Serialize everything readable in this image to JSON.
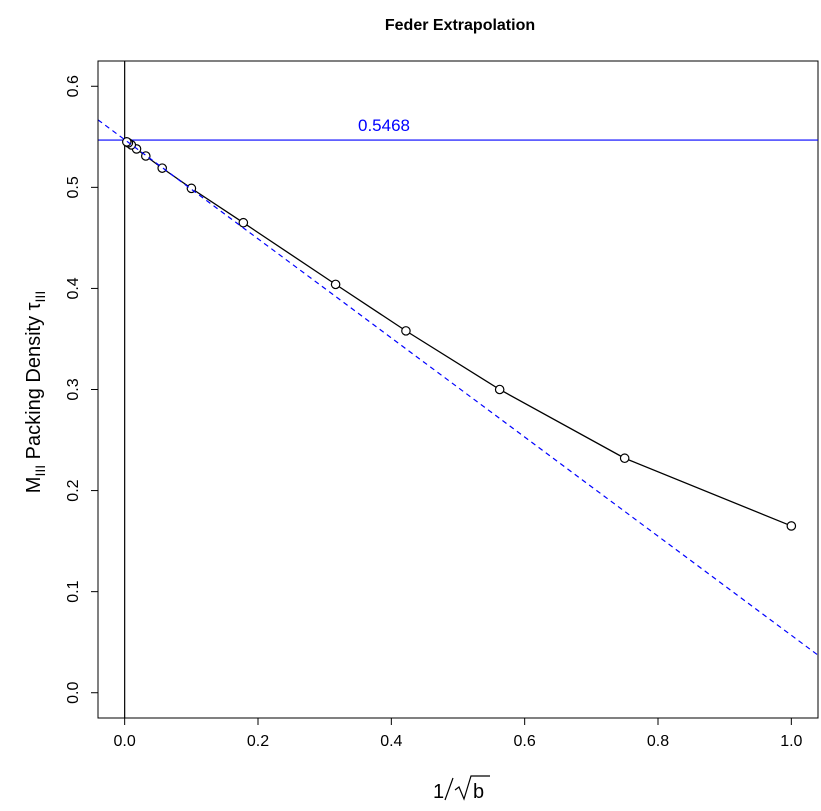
{
  "chart_data": {
    "type": "line",
    "title": "Feder Extrapolation",
    "xlabel": {
      "prefix": "1",
      "radicand": "b"
    },
    "ylabel": {
      "main": "M",
      "sub": "III",
      "rest": " Packing Density ",
      "greek": "τ",
      "greek_sub": "III"
    },
    "xlim": [
      -0.04,
      1.04
    ],
    "ylim": [
      -0.025,
      0.625
    ],
    "x_ticks": [
      0.0,
      0.2,
      0.4,
      0.6,
      0.8,
      1.0
    ],
    "x_tick_labels": [
      "0.0",
      "0.2",
      "0.4",
      "0.6",
      "0.8",
      "1.0"
    ],
    "y_ticks": [
      0.0,
      0.1,
      0.2,
      0.3,
      0.4,
      0.5,
      0.6
    ],
    "y_tick_labels": [
      "0.0",
      "0.1",
      "0.2",
      "0.3",
      "0.4",
      "0.5",
      "0.6"
    ],
    "grid": false,
    "series": [
      {
        "style": "line-with-open-circles",
        "color": "#000000",
        "x": [
          1.0,
          0.75,
          0.5625,
          0.4219,
          0.3164,
          0.178,
          0.1001,
          0.0563,
          0.0317,
          0.0178,
          0.01,
          0.0056,
          0.0032
        ],
        "y": [
          0.165,
          0.232,
          0.3,
          0.358,
          0.404,
          0.465,
          0.499,
          0.519,
          0.531,
          0.538,
          0.542,
          0.544,
          0.545
        ]
      },
      {
        "style": "dashed-line",
        "color": "#0000ff",
        "x": [
          -0.04,
          1.04
        ],
        "y": [
          0.5668,
          0.0372
        ]
      }
    ],
    "reference_lines": [
      {
        "orientation": "horizontal",
        "value": 0.5468,
        "color": "#0000ff",
        "label": "0.5468"
      },
      {
        "orientation": "vertical",
        "value": 0.0,
        "color": "#000000"
      }
    ]
  }
}
